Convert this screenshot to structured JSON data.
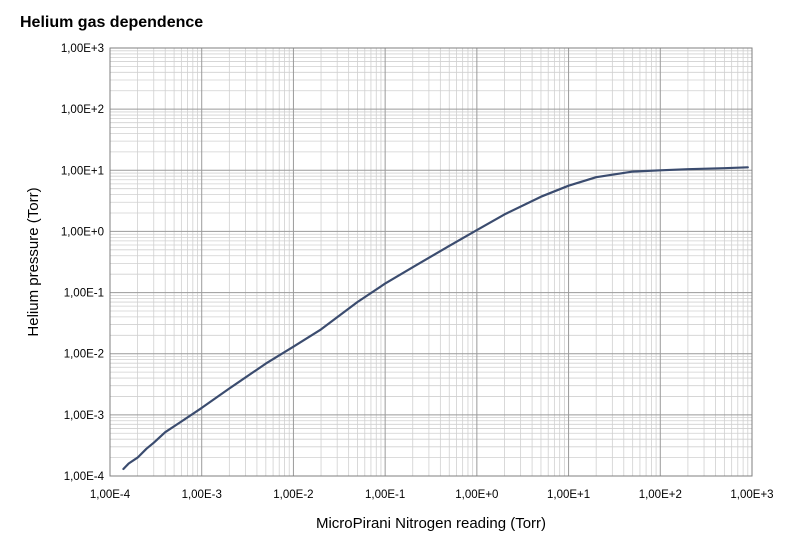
{
  "chart_data": {
    "type": "line",
    "title": "Helium gas dependence",
    "xlabel": "MicroPirani Nitrogen reading (Torr)",
    "ylabel": "Helium pressure (Torr)",
    "xscale": "log",
    "yscale": "log",
    "xlim": [
      0.0001,
      1000
    ],
    "ylim": [
      0.0001,
      1000
    ],
    "grid": true,
    "x_ticks": [
      "1,00E-4",
      "1,00E-3",
      "1,00E-2",
      "1,00E-1",
      "1,00E+0",
      "1,00E+1",
      "1,00E+2",
      "1,00E+3"
    ],
    "y_ticks": [
      "1,00E-4",
      "1,00E-3",
      "1,00E-2",
      "1,00E-1",
      "1,00E+0",
      "1,00E+1",
      "1,00E+2",
      "1,00E+3"
    ],
    "line_color": "#3b4c6f",
    "series": [
      {
        "x": [
          0.00014,
          0.00016,
          0.0002,
          0.00025,
          0.0003,
          0.0004,
          0.0006,
          0.001,
          0.002,
          0.005,
          0.01,
          0.02,
          0.05,
          0.1,
          0.2,
          0.5,
          1,
          2,
          5,
          10,
          20,
          50,
          100,
          200,
          500,
          900
        ],
        "y": [
          0.00013,
          0.00016,
          0.0002,
          0.00028,
          0.00035,
          0.00052,
          0.00078,
          0.0013,
          0.0027,
          0.0069,
          0.013,
          0.025,
          0.07,
          0.14,
          0.26,
          0.58,
          1.05,
          1.9,
          3.7,
          5.6,
          7.7,
          9.5,
          10.0,
          10.4,
          10.8,
          11.2
        ]
      }
    ]
  }
}
